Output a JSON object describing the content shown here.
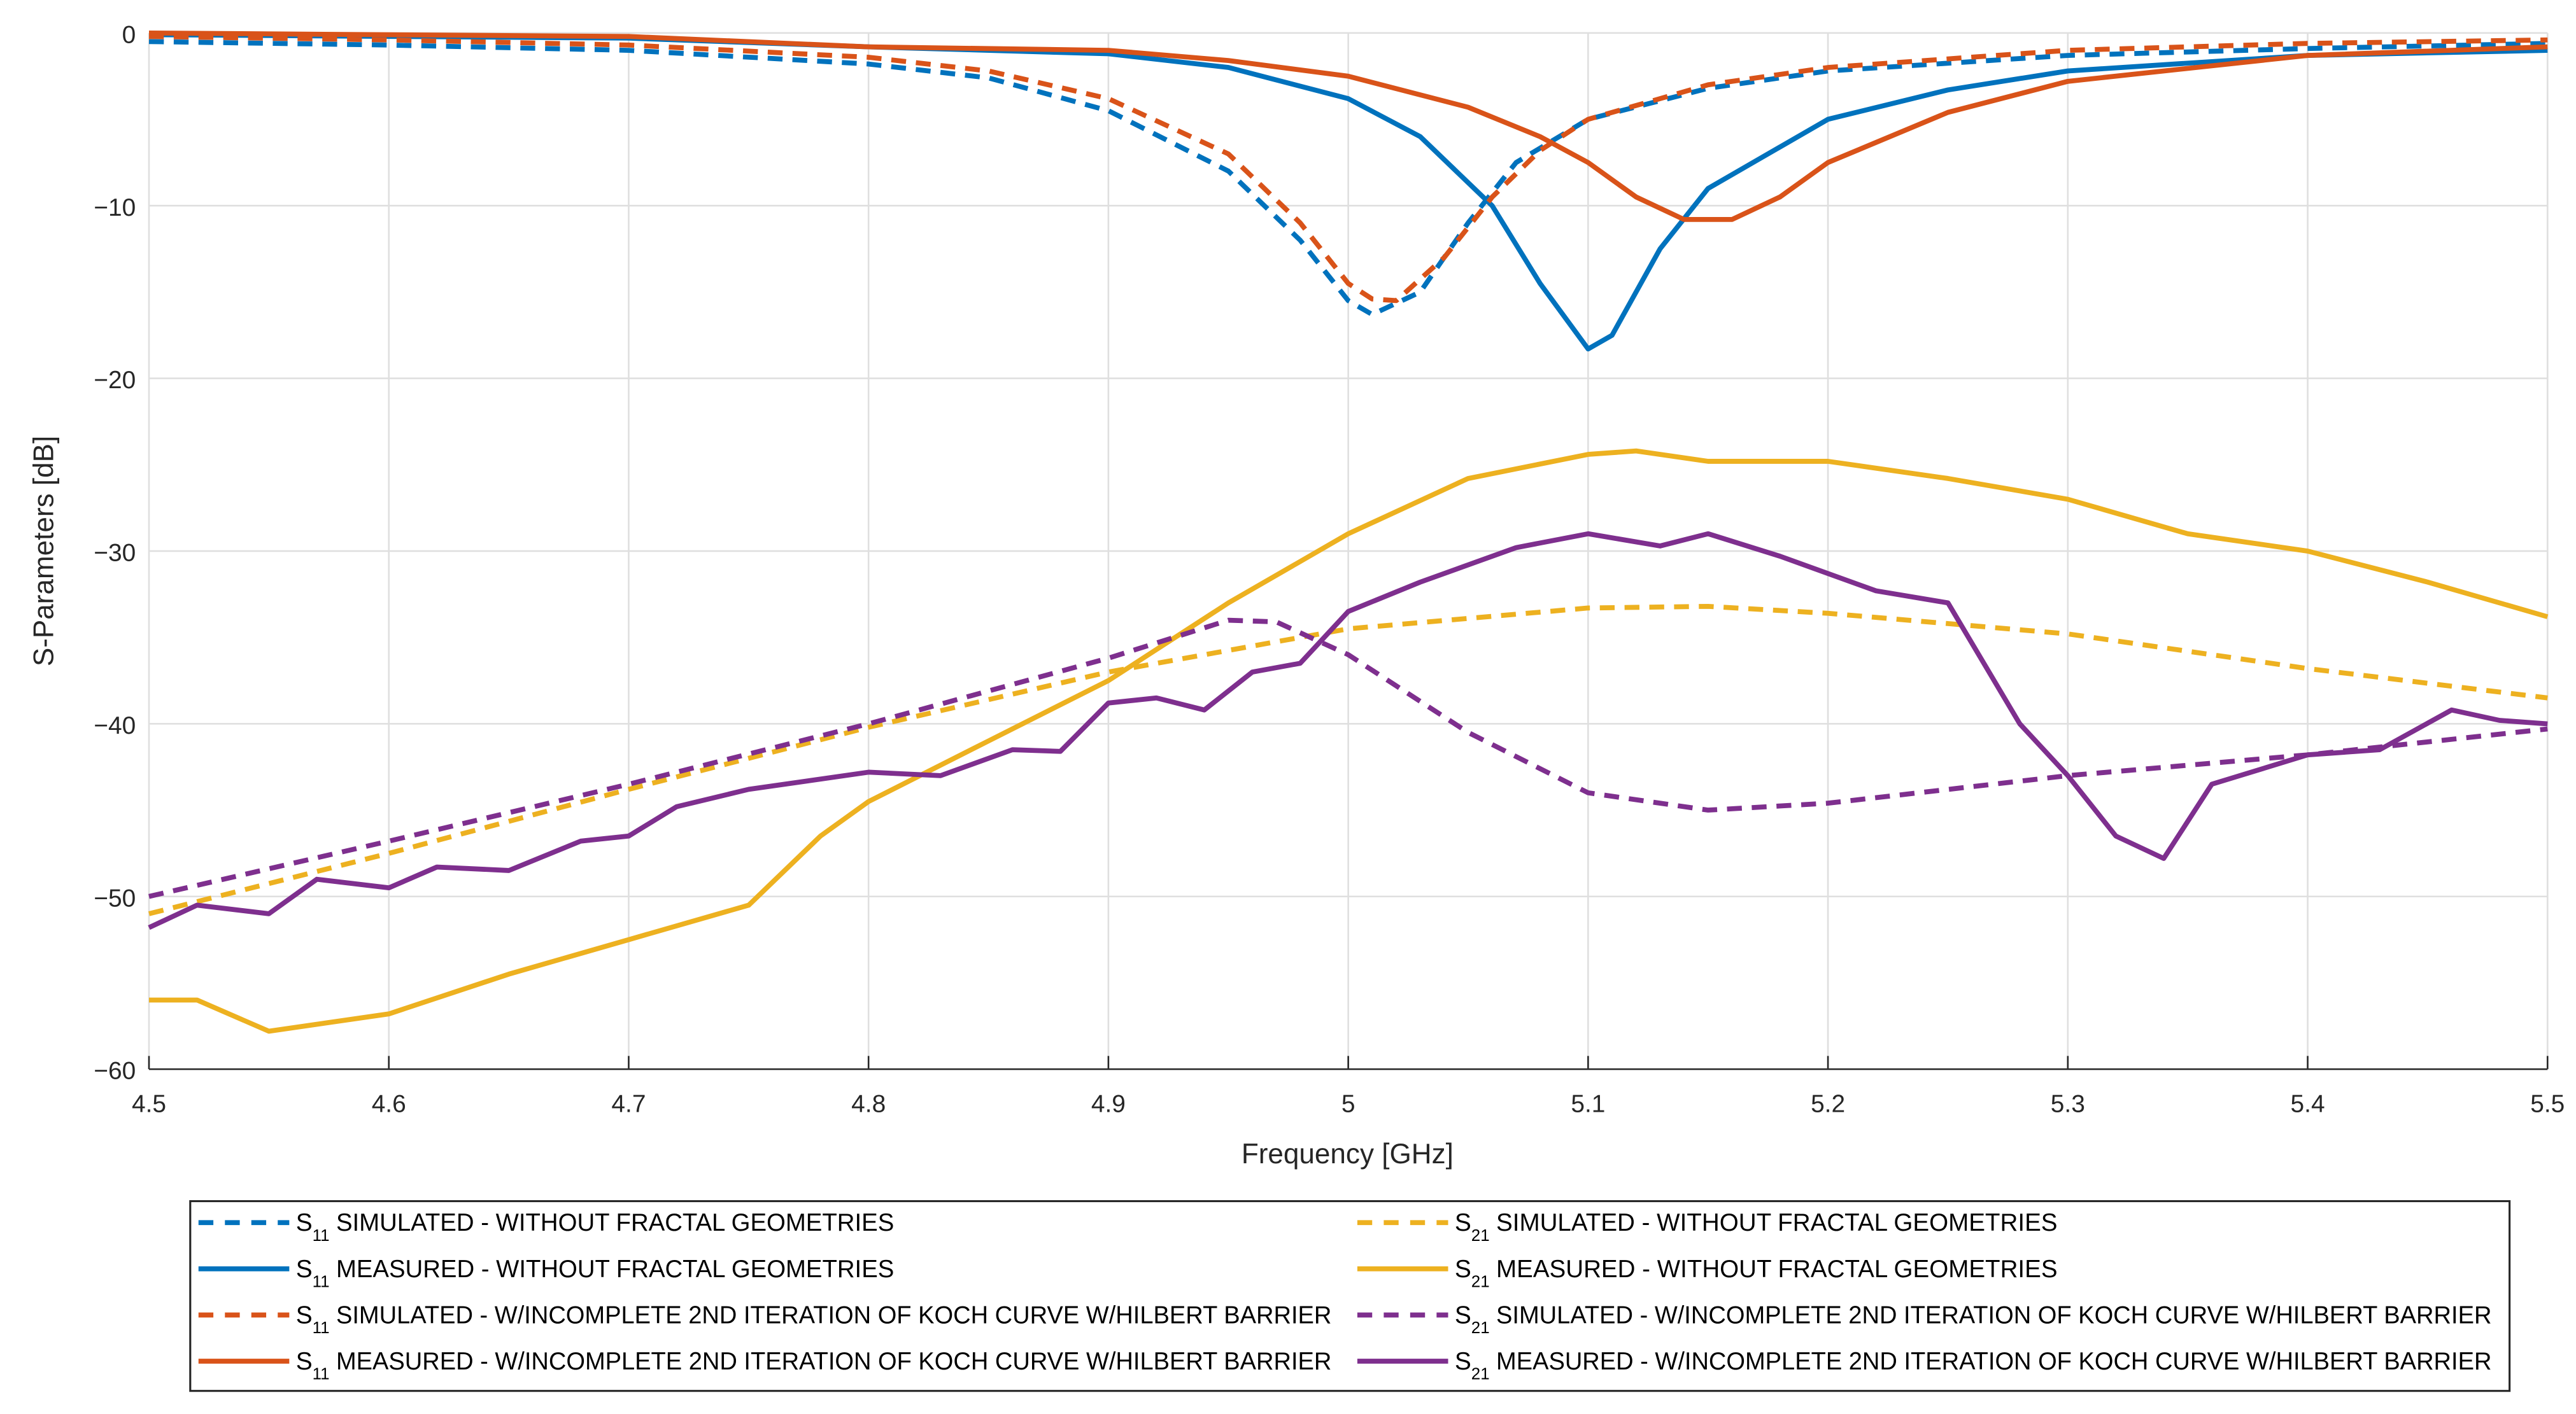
{
  "chart_data": {
    "type": "line",
    "title": "",
    "xlabel": "Frequency [GHz]",
    "ylabel": "S-Parameters [dB]",
    "xlim": [
      4.5,
      5.5
    ],
    "ylim": [
      -60,
      0
    ],
    "grid": true,
    "legend_placement": "bottom-outside",
    "xticks": [
      "4.5",
      "4.6",
      "4.7",
      "4.8",
      "4.9",
      "5",
      "5.1",
      "5.2",
      "5.3",
      "5.4",
      "5.5"
    ],
    "yticks": [
      "0",
      "−10",
      "−20",
      "−30",
      "−40",
      "−50",
      "−60"
    ],
    "series": [
      {
        "param": "S",
        "sub": "11",
        "name": "SIMULATED - WITHOUT FRACTAL GEOMETRIES",
        "color": "#0072BD",
        "style": "dashed",
        "x": [
          4.5,
          4.6,
          4.7,
          4.8,
          4.85,
          4.9,
          4.95,
          4.98,
          5.0,
          5.01,
          5.03,
          5.05,
          5.07,
          5.1,
          5.15,
          5.2,
          5.3,
          5.4,
          5.5
        ],
        "y": [
          -0.5,
          -0.7,
          -1.0,
          -1.8,
          -2.6,
          -4.5,
          -8,
          -12,
          -15.5,
          -16.3,
          -15,
          -11,
          -7.5,
          -5,
          -3.2,
          -2.2,
          -1.3,
          -0.9,
          -0.6
        ]
      },
      {
        "param": "S",
        "sub": "11",
        "name": "MEASURED - WITHOUT FRACTAL GEOMETRIES",
        "color": "#0072BD",
        "style": "solid",
        "x": [
          4.5,
          4.7,
          4.8,
          4.9,
          4.95,
          5.0,
          5.03,
          5.06,
          5.08,
          5.1,
          5.11,
          5.13,
          5.15,
          5.2,
          5.25,
          5.3,
          5.4,
          5.5
        ],
        "y": [
          -0.1,
          -0.3,
          -0.8,
          -1.2,
          -2,
          -3.8,
          -6,
          -10,
          -14.5,
          -18.3,
          -17.5,
          -12.5,
          -9,
          -5,
          -3.3,
          -2.2,
          -1.3,
          -1.0
        ]
      },
      {
        "param": "S",
        "sub": "11",
        "name": "SIMULATED - W/INCOMPLETE 2ND ITERATION OF KOCH CURVE W/HILBERT BARRIER",
        "color": "#D95319",
        "style": "dashed",
        "x": [
          4.5,
          4.6,
          4.7,
          4.8,
          4.85,
          4.9,
          4.95,
          4.98,
          5.0,
          5.01,
          5.02,
          5.04,
          5.06,
          5.08,
          5.1,
          5.15,
          5.2,
          5.3,
          5.4,
          5.5
        ],
        "y": [
          -0.2,
          -0.4,
          -0.7,
          -1.4,
          -2.2,
          -3.8,
          -7,
          -11,
          -14.5,
          -15.4,
          -15.5,
          -13,
          -9.5,
          -6.8,
          -5,
          -3,
          -2,
          -1,
          -0.6,
          -0.4
        ]
      },
      {
        "param": "S",
        "sub": "11",
        "name": "MEASURED - W/INCOMPLETE 2ND ITERATION OF KOCH CURVE W/HILBERT BARRIER",
        "color": "#D95319",
        "style": "solid",
        "x": [
          4.5,
          4.7,
          4.8,
          4.9,
          4.95,
          5.0,
          5.05,
          5.08,
          5.1,
          5.12,
          5.14,
          5.16,
          5.18,
          5.2,
          5.25,
          5.3,
          5.4,
          5.5
        ],
        "y": [
          0,
          -0.2,
          -0.8,
          -1.0,
          -1.6,
          -2.5,
          -4.3,
          -6,
          -7.5,
          -9.5,
          -10.8,
          -10.8,
          -9.5,
          -7.5,
          -4.6,
          -2.8,
          -1.3,
          -0.8
        ]
      },
      {
        "param": "S",
        "sub": "21",
        "name": "SIMULATED - WITHOUT FRACTAL GEOMETRIES",
        "color": "#EDB120",
        "style": "dashed",
        "x": [
          4.5,
          4.6,
          4.7,
          4.8,
          4.9,
          5.0,
          5.1,
          5.15,
          5.2,
          5.3,
          5.4,
          5.5
        ],
        "y": [
          -51,
          -47.5,
          -43.8,
          -40.2,
          -37,
          -34.5,
          -33.3,
          -33.2,
          -33.6,
          -34.8,
          -36.8,
          -38.5
        ]
      },
      {
        "param": "S",
        "sub": "21",
        "name": "MEASURED - WITHOUT FRACTAL GEOMETRIES",
        "color": "#EDB120",
        "style": "solid",
        "x": [
          4.5,
          4.52,
          4.55,
          4.6,
          4.65,
          4.7,
          4.75,
          4.78,
          4.8,
          4.85,
          4.9,
          4.95,
          5.0,
          5.05,
          5.1,
          5.12,
          5.15,
          5.2,
          5.25,
          5.3,
          5.35,
          5.4,
          5.45,
          5.5
        ],
        "y": [
          -56,
          -56,
          -57.8,
          -56.8,
          -54.5,
          -52.5,
          -50.5,
          -46.5,
          -44.5,
          -41,
          -37.5,
          -33,
          -29,
          -25.8,
          -24.4,
          -24.2,
          -24.8,
          -24.8,
          -25.8,
          -27,
          -29,
          -30,
          -31.8,
          -33.8
        ]
      },
      {
        "param": "S",
        "sub": "21",
        "name": "SIMULATED - W/INCOMPLETE 2ND ITERATION OF KOCH CURVE W/HILBERT BARRIER",
        "color": "#7E2F8E",
        "style": "dashed",
        "x": [
          4.5,
          4.6,
          4.7,
          4.8,
          4.9,
          4.95,
          4.97,
          5.0,
          5.05,
          5.1,
          5.15,
          5.2,
          5.3,
          5.4,
          5.5
        ],
        "y": [
          -50,
          -46.8,
          -43.5,
          -40,
          -36.2,
          -34,
          -34.1,
          -36,
          -40.5,
          -44,
          -45,
          -44.6,
          -43,
          -41.8,
          -40.3
        ]
      },
      {
        "param": "S",
        "sub": "21",
        "name": "MEASURED - W/INCOMPLETE 2ND ITERATION OF KOCH CURVE W/HILBERT BARRIER",
        "color": "#7E2F8E",
        "style": "solid",
        "x": [
          4.5,
          4.52,
          4.55,
          4.57,
          4.6,
          4.62,
          4.65,
          4.68,
          4.7,
          4.72,
          4.75,
          4.8,
          4.83,
          4.86,
          4.88,
          4.9,
          4.92,
          4.94,
          4.96,
          4.98,
          5.0,
          5.03,
          5.07,
          5.1,
          5.13,
          5.15,
          5.18,
          5.22,
          5.25,
          5.28,
          5.3,
          5.32,
          5.34,
          5.36,
          5.4,
          5.43,
          5.46,
          5.48,
          5.5
        ],
        "y": [
          -51.8,
          -50.5,
          -51,
          -49,
          -49.5,
          -48.3,
          -48.5,
          -46.8,
          -46.5,
          -44.8,
          -43.8,
          -42.8,
          -43,
          -41.5,
          -41.6,
          -38.8,
          -38.5,
          -39.2,
          -37,
          -36.5,
          -33.5,
          -31.8,
          -29.8,
          -29,
          -29.7,
          -29,
          -30.3,
          -32.3,
          -33,
          -40,
          -43,
          -46.5,
          -47.8,
          -43.5,
          -41.8,
          -41.5,
          -39.2,
          -39.8,
          -40
        ]
      }
    ]
  }
}
